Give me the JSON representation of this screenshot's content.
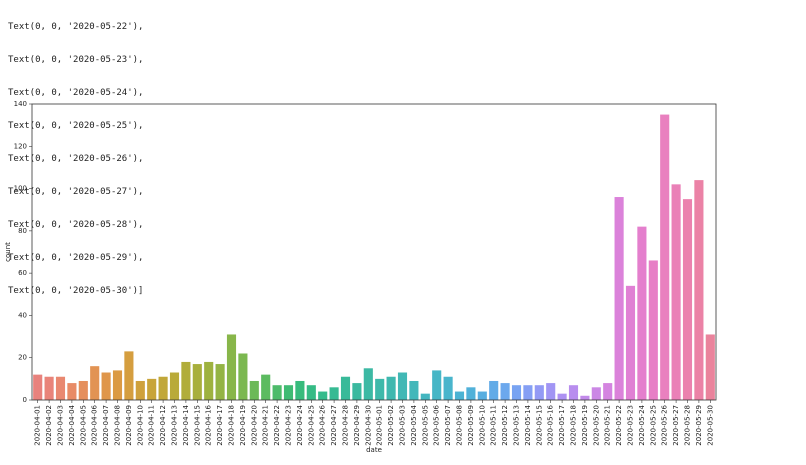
{
  "console_output": [
    "Text(0, 0, '2020-05-22'),",
    "Text(0, 0, '2020-05-23'),",
    "Text(0, 0, '2020-05-24'),",
    "Text(0, 0, '2020-05-25'),",
    "Text(0, 0, '2020-05-26'),",
    "Text(0, 0, '2020-05-27'),",
    "Text(0, 0, '2020-05-28'),",
    "Text(0, 0, '2020-05-29'),",
    "Text(0, 0, '2020-05-30')]"
  ],
  "chart_data": {
    "type": "bar",
    "title": "",
    "xlabel": "date",
    "ylabel": "count",
    "ylim": [
      0,
      140
    ],
    "yticks": [
      0,
      20,
      40,
      60,
      80,
      100,
      120,
      140
    ],
    "grid": false,
    "categories": [
      "2020-04-01",
      "2020-04-02",
      "2020-04-03",
      "2020-04-04",
      "2020-04-05",
      "2020-04-06",
      "2020-04-07",
      "2020-04-08",
      "2020-04-09",
      "2020-04-10",
      "2020-04-11",
      "2020-04-12",
      "2020-04-13",
      "2020-04-14",
      "2020-04-15",
      "2020-04-16",
      "2020-04-17",
      "2020-04-18",
      "2020-04-19",
      "2020-04-20",
      "2020-04-21",
      "2020-04-22",
      "2020-04-23",
      "2020-04-24",
      "2020-04-25",
      "2020-04-26",
      "2020-04-27",
      "2020-04-28",
      "2020-04-29",
      "2020-04-30",
      "2020-05-01",
      "2020-05-02",
      "2020-05-03",
      "2020-05-04",
      "2020-05-05",
      "2020-05-06",
      "2020-05-07",
      "2020-05-08",
      "2020-05-09",
      "2020-05-10",
      "2020-05-11",
      "2020-05-12",
      "2020-05-13",
      "2020-05-14",
      "2020-05-15",
      "2020-05-16",
      "2020-05-17",
      "2020-05-18",
      "2020-05-19",
      "2020-05-20",
      "2020-05-21",
      "2020-05-22",
      "2020-05-23",
      "2020-05-24",
      "2020-05-25",
      "2020-05-26",
      "2020-05-27",
      "2020-05-28",
      "2020-05-29",
      "2020-05-30"
    ],
    "values": [
      12,
      11,
      11,
      8,
      9,
      16,
      13,
      14,
      23,
      9,
      10,
      11,
      13,
      18,
      17,
      18,
      17,
      31,
      22,
      9,
      12,
      7,
      7,
      9,
      7,
      4,
      6,
      11,
      8,
      15,
      10,
      11,
      13,
      9,
      3,
      14,
      11,
      4,
      6,
      4,
      9,
      8,
      7,
      7,
      7,
      8,
      3,
      7,
      2,
      6,
      8,
      96,
      54,
      82,
      66,
      135,
      102,
      95,
      104,
      31
    ],
    "colors": [
      "#e8827d",
      "#e9847a",
      "#e98870",
      "#e88b66",
      "#e58f5c",
      "#e29353",
      "#df964a",
      "#db9a43",
      "#d59e3f",
      "#cfa13c",
      "#c8a43a",
      "#c1a739",
      "#b9aa39",
      "#b1ad3a",
      "#a8af3c",
      "#9eb23f",
      "#94b444",
      "#88b64a",
      "#7bb850",
      "#6cb958",
      "#5cbb60",
      "#4dbb6a",
      "#3fbb73",
      "#37bb7c",
      "#35bb85",
      "#35bb8c",
      "#36ba93",
      "#38ba99",
      "#3ab99f",
      "#3cb9a4",
      "#3eb9aa",
      "#3fb8af",
      "#41b8b5",
      "#42b7ba",
      "#44b6c0",
      "#46b6c6",
      "#49b5cc",
      "#4cb3d3",
      "#51b1d9",
      "#58aee0",
      "#61abe7",
      "#6ca8ed",
      "#78a3f2",
      "#859ff4",
      "#939af5",
      "#a195f4",
      "#ad91f2",
      "#b88dee",
      "#c28aea",
      "#cb87e5",
      "#d484e0",
      "#db82da",
      "#e080d4",
      "#e47fcd",
      "#e77fc6",
      "#e980bf",
      "#ea80b7",
      "#eb81ae",
      "#eb82a6",
      "#ea839c"
    ]
  }
}
